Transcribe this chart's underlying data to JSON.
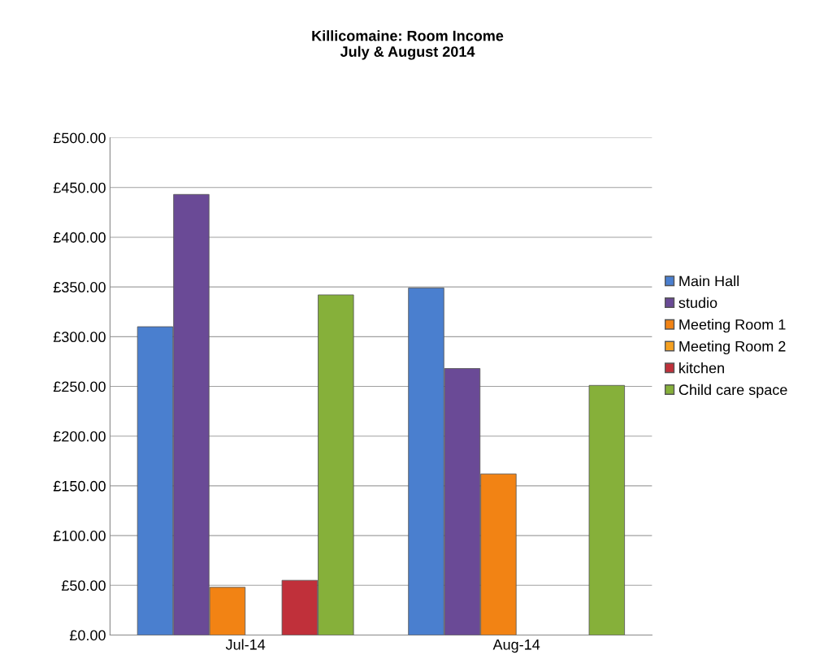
{
  "chart_data": {
    "type": "bar",
    "title": "Killicomaine: Room Income\nJuly & August 2014",
    "categories": [
      "Jul-14",
      "Aug-14"
    ],
    "series": [
      {
        "name": "Main Hall",
        "color": "#4a7fcf",
        "values": [
          310,
          349
        ]
      },
      {
        "name": "studio",
        "color": "#6a4a96",
        "values": [
          443,
          268
        ]
      },
      {
        "name": "Meeting Room 1",
        "color": "#f28314",
        "values": [
          48,
          162
        ]
      },
      {
        "name": "Meeting Room 2",
        "color": "#f5a020",
        "values": [
          null,
          null
        ]
      },
      {
        "name": "kitchen",
        "color": "#c0303a",
        "values": [
          55,
          null
        ]
      },
      {
        "name": "Child care space",
        "color": "#86b03a",
        "values": [
          342,
          251
        ]
      }
    ],
    "ylim": [
      0,
      500
    ],
    "yticks": [
      {
        "value": 0,
        "label": "£0.00"
      },
      {
        "value": 50,
        "label": "£50.00"
      },
      {
        "value": 100,
        "label": "£100.00"
      },
      {
        "value": 150,
        "label": "£150.00"
      },
      {
        "value": 200,
        "label": "£200.00"
      },
      {
        "value": 250,
        "label": "£250.00"
      },
      {
        "value": 300,
        "label": "£300.00"
      },
      {
        "value": 350,
        "label": "£350.00"
      },
      {
        "value": 400,
        "label": "£400.00"
      },
      {
        "value": 450,
        "label": "£450.00"
      },
      {
        "value": 500,
        "label": "£500.00"
      }
    ],
    "grid": "y",
    "legend": "right"
  }
}
